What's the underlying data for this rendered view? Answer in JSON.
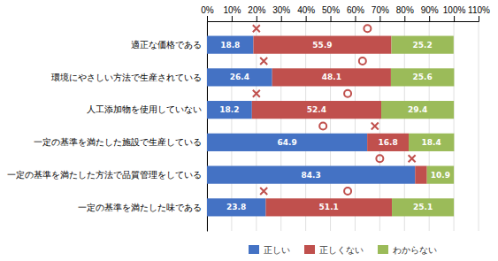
{
  "chart_data": {
    "type": "bar",
    "orientation": "horizontal",
    "stacked": true,
    "grid": true,
    "data_labels": true,
    "categories": [
      "適正な価格である",
      "環境にやさしい方法で生産されている",
      "人工添加物を使用していない",
      "一定の基準を満たした施設で生産している",
      "一定の基準を満たした方法で品質管理をしている",
      "一定の基準を満たした味である"
    ],
    "series": [
      {
        "name": "正しい",
        "color": "#4472c4",
        "values": [
          18.8,
          26.4,
          18.2,
          64.9,
          84.3,
          23.8
        ]
      },
      {
        "name": "正しくない",
        "color": "#c0504d",
        "values": [
          55.9,
          48.1,
          52.4,
          16.8,
          4.8,
          51.1
        ],
        "value_labels": [
          "55.9",
          "48.1",
          "52.4",
          "16.8",
          null,
          "51.1"
        ]
      },
      {
        "name": "わからない",
        "color": "#9bbb59",
        "values": [
          25.2,
          25.6,
          29.4,
          18.4,
          10.9,
          25.1
        ]
      },
      {
        "type": "scatter",
        "marker": "x",
        "color": "#c0504d",
        "values": [
          20,
          23,
          20,
          68,
          83,
          23
        ]
      },
      {
        "type": "scatter",
        "marker": "circle",
        "color": "#c0504d",
        "values": [
          65,
          63,
          57,
          47,
          70,
          57
        ]
      }
    ],
    "xlim": [
      0,
      110
    ],
    "xticks": [
      {
        "value": 0,
        "label": "0%"
      },
      {
        "value": 10,
        "label": "10%"
      },
      {
        "value": 20,
        "label": "20%"
      },
      {
        "value": 30,
        "label": "30%"
      },
      {
        "value": 40,
        "label": "40%"
      },
      {
        "value": 50,
        "label": "50%"
      },
      {
        "value": 60,
        "label": "60%"
      },
      {
        "value": 70,
        "label": "70%"
      },
      {
        "value": 80,
        "label": "80%"
      },
      {
        "value": 90,
        "label": "90%"
      },
      {
        "value": 100,
        "label": "100%"
      },
      {
        "value": 110,
        "label": "110%"
      }
    ]
  }
}
